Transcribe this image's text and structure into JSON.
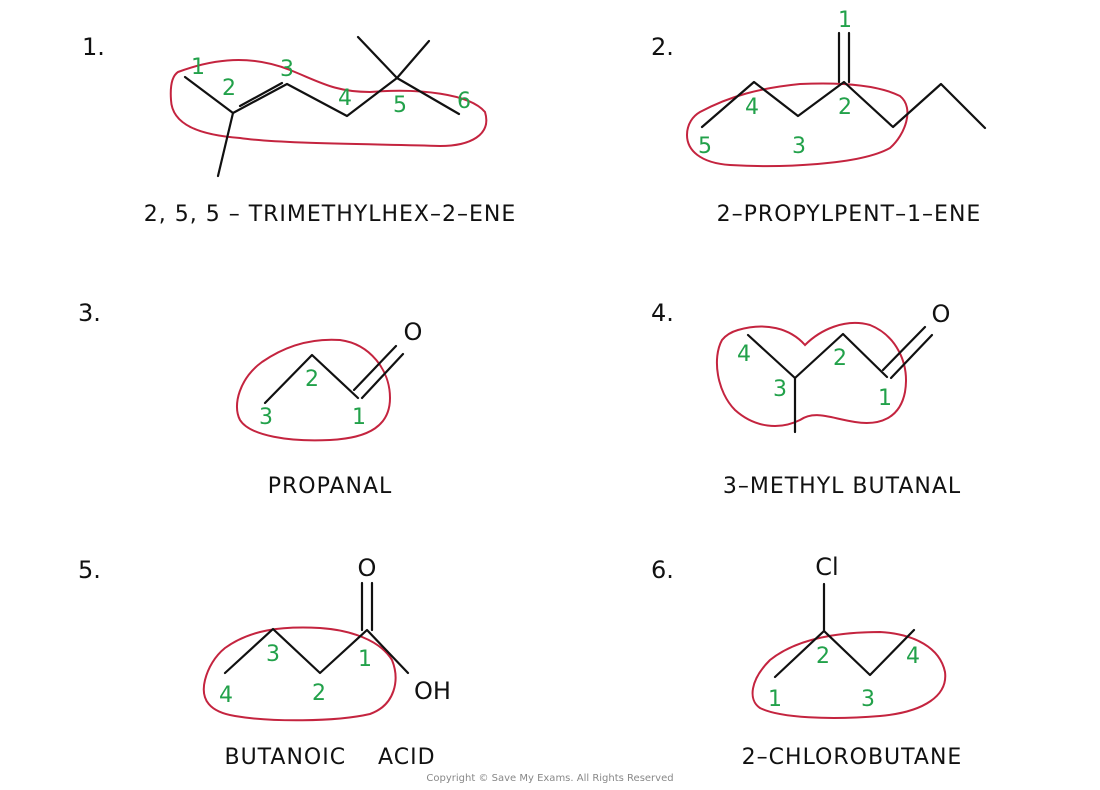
{
  "panels": [
    {
      "number": "1.",
      "name": "2, 5, 5 – TRIMETHYLHEX–2–ENE",
      "carbons": [
        "1",
        "2",
        "3",
        "4",
        "5",
        "6"
      ]
    },
    {
      "number": "2.",
      "name": "2–PROPYLPENT–1–ENE",
      "carbons": [
        "1",
        "2",
        "3",
        "4",
        "5"
      ]
    },
    {
      "number": "3.",
      "name": "PROPANAL",
      "atoms": [
        "O"
      ],
      "carbons": [
        "1",
        "2",
        "3"
      ]
    },
    {
      "number": "4.",
      "name": "3–METHYL BUTANAL",
      "atoms": [
        "O"
      ],
      "carbons": [
        "1",
        "2",
        "3",
        "4"
      ]
    },
    {
      "number": "5.",
      "name": "BUTANOIC    ACID",
      "atoms": [
        "O",
        "OH"
      ],
      "carbons": [
        "1",
        "2",
        "3",
        "4"
      ]
    },
    {
      "number": "6.",
      "name": "2–CHLOROBUTANE",
      "atoms": [
        "Cl"
      ],
      "carbons": [
        "1",
        "2",
        "3",
        "4"
      ]
    }
  ],
  "footer": {
    "copyright": "Copyright © Save My Exams. All Rights Reserved"
  },
  "colors": {
    "carbon_numbers": "#22a14a",
    "main_chain_outline": "#c4243f",
    "bonds": "#111111"
  }
}
